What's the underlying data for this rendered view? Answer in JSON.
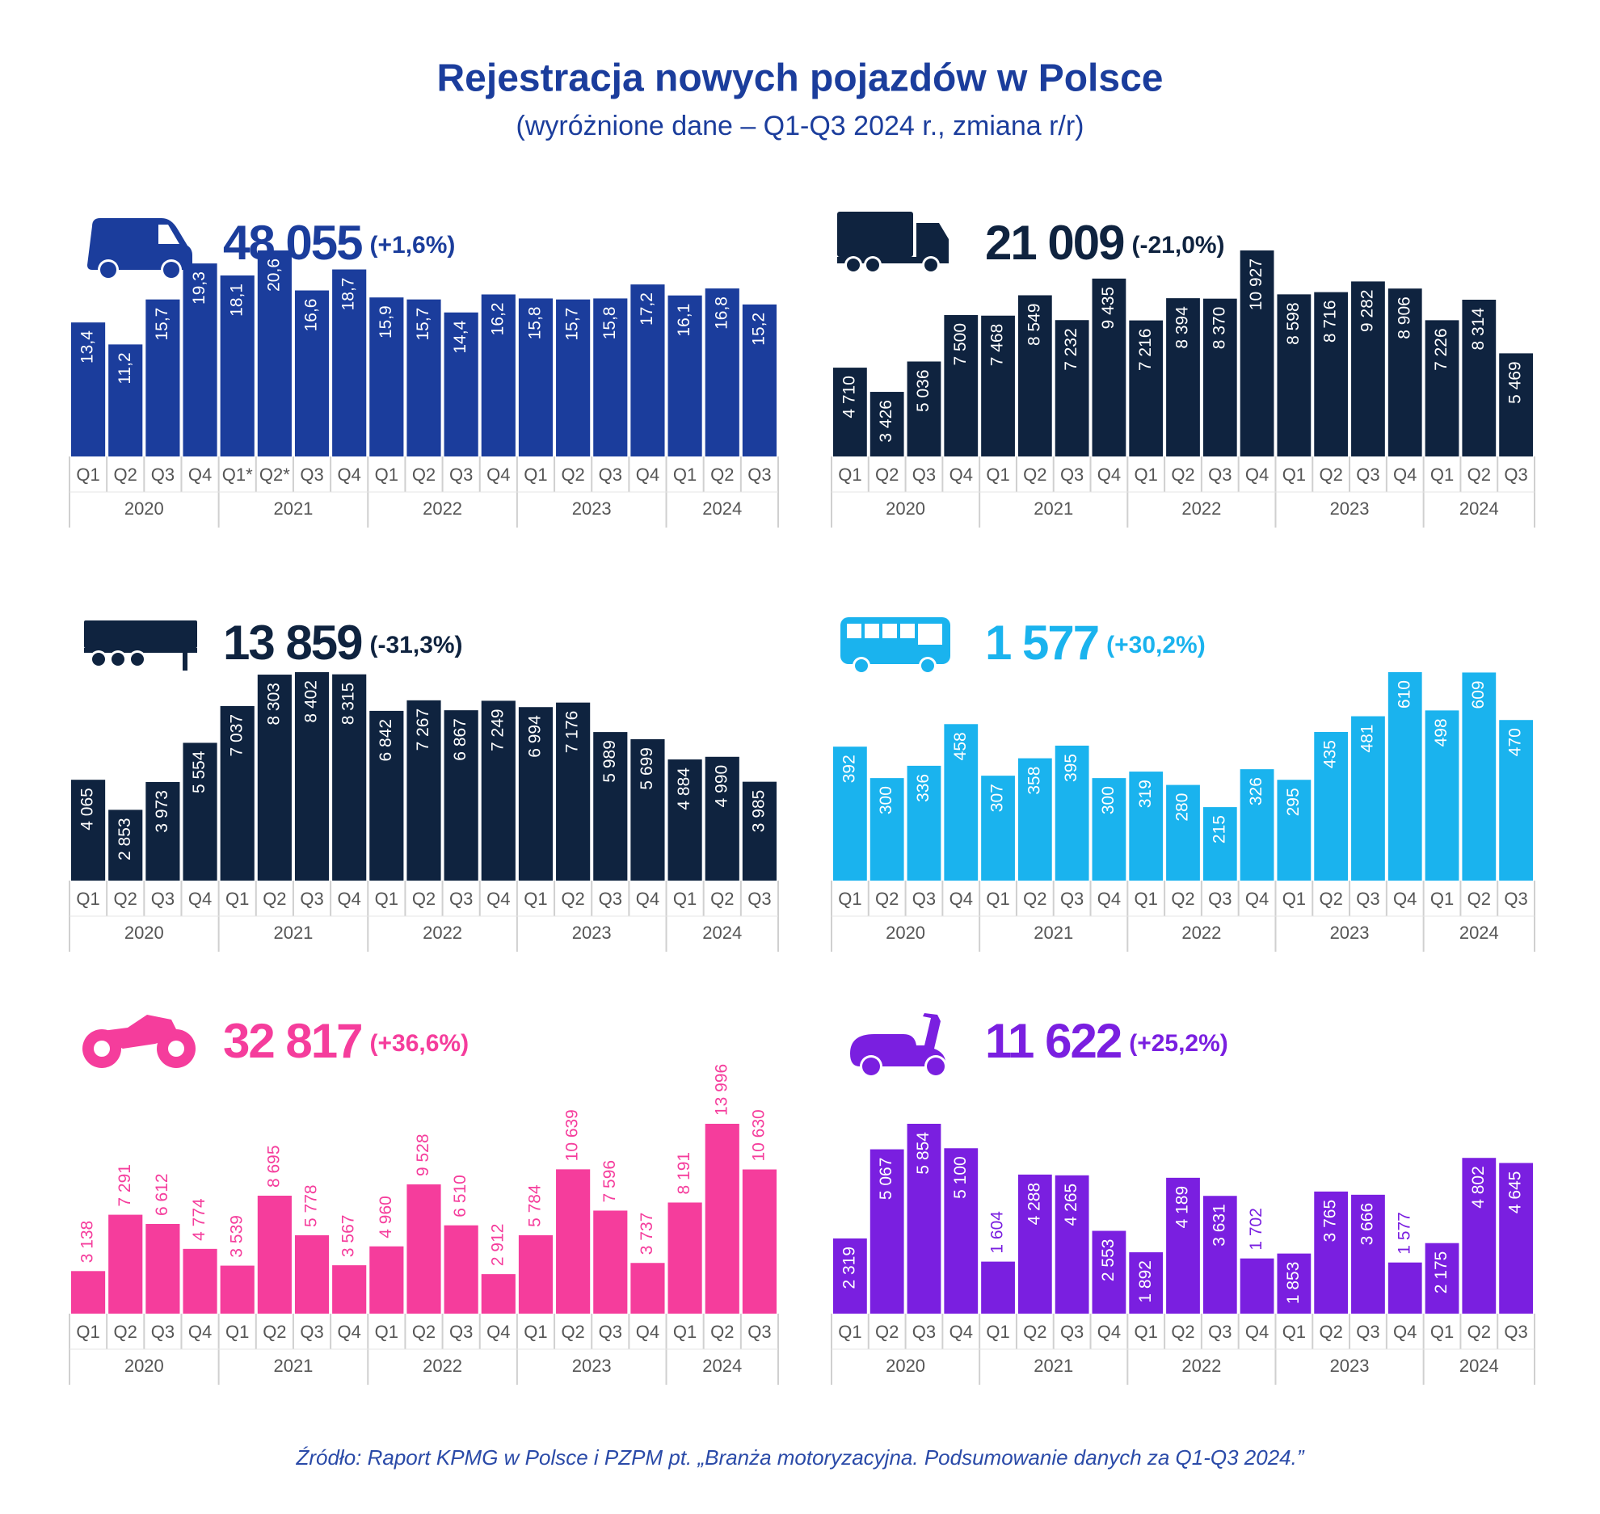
{
  "title": "Rejestracja nowych pojazdów w Polsce",
  "subtitle": "(wyróżnione dane – Q1-Q3 2024 r., zmiana r/r)",
  "source": "Źródło: Raport KPMG w Polsce i PZPM pt. „Branża motoryzacyjna. Podsumowanie danych za Q1-Q3 2024.”",
  "chart_data": [
    {
      "type": "bar",
      "total": "48 055",
      "change": "(+1,6%)",
      "color": "#1b3d9c",
      "labels": "inside",
      "categories": [
        "Q1",
        "Q2",
        "Q3",
        "Q4",
        "Q1*",
        "Q2*",
        "Q3",
        "Q4",
        "Q1",
        "Q2",
        "Q3",
        "Q4",
        "Q1",
        "Q2",
        "Q3",
        "Q4",
        "Q1",
        "Q2",
        "Q3"
      ],
      "groups": [
        "2020",
        "2021",
        "2022",
        "2023",
        "2024"
      ],
      "values": [
        13.4,
        11.2,
        15.7,
        19.3,
        18.1,
        20.6,
        16.6,
        18.7,
        15.9,
        15.7,
        14.4,
        16.2,
        15.8,
        15.7,
        15.8,
        17.2,
        16.1,
        16.8,
        15.2
      ],
      "value_labels": [
        "13,4",
        "11,2",
        "15,7",
        "19,3",
        "18,1",
        "20,6",
        "16,6",
        "18,7",
        "15,9",
        "15,7",
        "14,4",
        "16,2",
        "15,8",
        "15,7",
        "15,8",
        "17,2",
        "16,1",
        "16,8",
        "15,2"
      ]
    },
    {
      "type": "bar",
      "total": "21 009",
      "change": "(-21,0%)",
      "color": "#0f233f",
      "labels": "inside",
      "categories": [
        "Q1",
        "Q2",
        "Q3",
        "Q4",
        "Q1",
        "Q2",
        "Q3",
        "Q4",
        "Q1",
        "Q2",
        "Q3",
        "Q4",
        "Q1",
        "Q2",
        "Q3",
        "Q4",
        "Q1",
        "Q2",
        "Q3"
      ],
      "groups": [
        "2020",
        "2021",
        "2022",
        "2023",
        "2024"
      ],
      "values": [
        4710,
        3426,
        5036,
        7500,
        7468,
        8549,
        7232,
        9435,
        7216,
        8394,
        8370,
        10927,
        8598,
        8716,
        9282,
        8906,
        7226,
        8314,
        5469
      ],
      "value_labels": [
        "4 710",
        "3 426",
        "5 036",
        "7 500",
        "7 468",
        "8 549",
        "7 232",
        "9 435",
        "7 216",
        "8 394",
        "8 370",
        "10 927",
        "8 598",
        "8 716",
        "9 282",
        "8 906",
        "7 226",
        "8 314",
        "5 469"
      ]
    },
    {
      "type": "bar",
      "total": "13 859",
      "change": "(-31,3%)",
      "color": "#0f233f",
      "labels": "inside",
      "categories": [
        "Q1",
        "Q2",
        "Q3",
        "Q4",
        "Q1",
        "Q2",
        "Q3",
        "Q4",
        "Q1",
        "Q2",
        "Q3",
        "Q4",
        "Q1",
        "Q2",
        "Q3",
        "Q4",
        "Q1",
        "Q2",
        "Q3"
      ],
      "groups": [
        "2020",
        "2021",
        "2022",
        "2023",
        "2024"
      ],
      "values": [
        4065,
        2853,
        3973,
        5554,
        7037,
        8303,
        8402,
        8315,
        6842,
        7267,
        6867,
        7249,
        6994,
        7176,
        5989,
        5699,
        4884,
        4990,
        3985
      ],
      "value_labels": [
        "4 065",
        "2 853",
        "3 973",
        "5 554",
        "7 037",
        "8 303",
        "8 402",
        "8 315",
        "6 842",
        "7 267",
        "6 867",
        "7 249",
        "6 994",
        "7 176",
        "5 989",
        "5 699",
        "4 884",
        "4 990",
        "3 985"
      ]
    },
    {
      "type": "bar",
      "total": "1 577",
      "change": "(+30,2%)",
      "color": "#1ab3ee",
      "labels": "inside",
      "categories": [
        "Q1",
        "Q2",
        "Q3",
        "Q4",
        "Q1",
        "Q2",
        "Q3",
        "Q4",
        "Q1",
        "Q2",
        "Q3",
        "Q4",
        "Q1",
        "Q2",
        "Q3",
        "Q4",
        "Q1",
        "Q2",
        "Q3"
      ],
      "groups": [
        "2020",
        "2021",
        "2022",
        "2023",
        "2024"
      ],
      "values": [
        392,
        300,
        336,
        458,
        307,
        358,
        395,
        300,
        319,
        280,
        215,
        326,
        295,
        435,
        481,
        610,
        498,
        609,
        470
      ]
    },
    {
      "type": "bar",
      "total": "32 817",
      "change": "(+36,6%)",
      "color": "#f53d9c",
      "labels": "above",
      "categories": [
        "Q1",
        "Q2",
        "Q3",
        "Q4",
        "Q1",
        "Q2",
        "Q3",
        "Q4",
        "Q1",
        "Q2",
        "Q3",
        "Q4",
        "Q1",
        "Q2",
        "Q3",
        "Q4",
        "Q1",
        "Q2",
        "Q3"
      ],
      "groups": [
        "2020",
        "2021",
        "2022",
        "2023",
        "2024"
      ],
      "values": [
        3138,
        7291,
        6612,
        4774,
        3539,
        8695,
        5778,
        3567,
        4960,
        9528,
        6510,
        2912,
        5784,
        10639,
        7596,
        3737,
        8191,
        13996,
        10630
      ],
      "value_labels": [
        "3 138",
        "7 291",
        "6 612",
        "4 774",
        "3 539",
        "8 695",
        "5 778",
        "3 567",
        "4 960",
        "9 528",
        "6 510",
        "2 912",
        "5 784",
        "10 639",
        "7 596",
        "3 737",
        "8 191",
        "13 996",
        "10 630"
      ]
    },
    {
      "type": "bar",
      "total": "11 622",
      "change": "(+25,2%)",
      "color": "#7a1fe0",
      "labels": "inside",
      "categories": [
        "Q1",
        "Q2",
        "Q3",
        "Q4",
        "Q1",
        "Q2",
        "Q3",
        "Q4",
        "Q1",
        "Q2",
        "Q3",
        "Q4",
        "Q1",
        "Q2",
        "Q3",
        "Q4",
        "Q1",
        "Q2",
        "Q3"
      ],
      "groups": [
        "2020",
        "2021",
        "2022",
        "2023",
        "2024"
      ],
      "values": [
        2319,
        5067,
        5854,
        5100,
        1604,
        4288,
        4265,
        2553,
        1892,
        4189,
        3631,
        1702,
        1853,
        3765,
        3666,
        1577,
        2175,
        4802,
        4645
      ],
      "value_labels": [
        "2 319",
        "5 067",
        "5 854",
        "5 100",
        "1 604",
        "4 288",
        "4 265",
        "2 553",
        "1 892",
        "4 189",
        "3 631",
        "1 702",
        "1 853",
        "3 765",
        "3 666",
        "1 577",
        "2 175",
        "4 802",
        "4 645"
      ]
    }
  ]
}
